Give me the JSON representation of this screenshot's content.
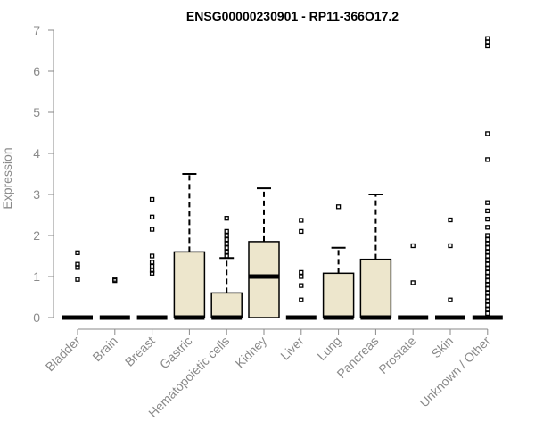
{
  "chart_data": {
    "type": "box",
    "title": "ENSG00000230901 - RP11-366O17.2",
    "xlabel": "",
    "ylabel": "Expression",
    "ylim": [
      0,
      7
    ],
    "yticks": [
      0,
      1,
      2,
      3,
      4,
      5,
      6,
      7
    ],
    "grid": false,
    "colors": {
      "box_fill": "#ede6cc",
      "axis": "#8a8a8a",
      "stroke": "#000000"
    },
    "categories": [
      "Bladder",
      "Brain",
      "Breast",
      "Gastric",
      "Hematopoietic cells",
      "Kidney",
      "Liver",
      "Lung",
      "Pancreas",
      "Prostate",
      "Skin",
      "Unknown / Other"
    ],
    "boxes": [
      {
        "q1": 0,
        "median": 0,
        "q3": 0,
        "whisker_low": 0,
        "whisker_high": 0,
        "outliers": [
          0.93,
          1.22,
          1.3,
          1.58
        ]
      },
      {
        "q1": 0,
        "median": 0,
        "q3": 0,
        "whisker_low": 0,
        "whisker_high": 0,
        "outliers": [
          0.9,
          0.93
        ]
      },
      {
        "q1": 0,
        "median": 0,
        "q3": 0,
        "whisker_low": 0,
        "whisker_high": 0,
        "outliers": [
          1.08,
          1.15,
          1.25,
          1.35,
          1.5,
          2.15,
          2.45,
          2.88
        ]
      },
      {
        "q1": 0,
        "median": 0,
        "q3": 1.6,
        "whisker_low": 0,
        "whisker_high": 3.5,
        "outliers": []
      },
      {
        "q1": 0,
        "median": 0,
        "q3": 0.6,
        "whisker_low": 0,
        "whisker_high": 1.45,
        "outliers": [
          1.5,
          1.6,
          1.7,
          1.8,
          1.9,
          2.0,
          2.1,
          2.42
        ]
      },
      {
        "q1": 0,
        "median": 1.0,
        "q3": 1.85,
        "whisker_low": 0,
        "whisker_high": 3.15,
        "outliers": []
      },
      {
        "q1": 0,
        "median": 0,
        "q3": 0,
        "whisker_low": 0,
        "whisker_high": 0,
        "outliers": [
          0.43,
          0.78,
          1.0,
          1.1,
          2.1,
          2.37
        ]
      },
      {
        "q1": 0,
        "median": 0,
        "q3": 1.08,
        "whisker_low": 0,
        "whisker_high": 1.7,
        "outliers": [
          2.7
        ]
      },
      {
        "q1": 0,
        "median": 0,
        "q3": 1.42,
        "whisker_low": 0,
        "whisker_high": 3.0,
        "outliers": []
      },
      {
        "q1": 0,
        "median": 0,
        "q3": 0,
        "whisker_low": 0,
        "whisker_high": 0,
        "outliers": [
          0.85,
          1.75
        ]
      },
      {
        "q1": 0,
        "median": 0,
        "q3": 0,
        "whisker_low": 0,
        "whisker_high": 0,
        "outliers": [
          0.43,
          1.75,
          2.38
        ]
      },
      {
        "q1": 0,
        "median": 0,
        "q3": 0,
        "whisker_low": 0,
        "whisker_high": 0,
        "outliers": [
          0.1,
          0.2,
          0.3,
          0.4,
          0.5,
          0.6,
          0.7,
          0.8,
          0.9,
          1.0,
          1.1,
          1.2,
          1.3,
          1.4,
          1.5,
          1.6,
          1.7,
          1.8,
          1.9,
          2.0,
          2.2,
          2.4,
          2.6,
          2.8,
          3.85,
          4.48,
          6.62,
          6.72,
          6.8
        ]
      }
    ]
  }
}
